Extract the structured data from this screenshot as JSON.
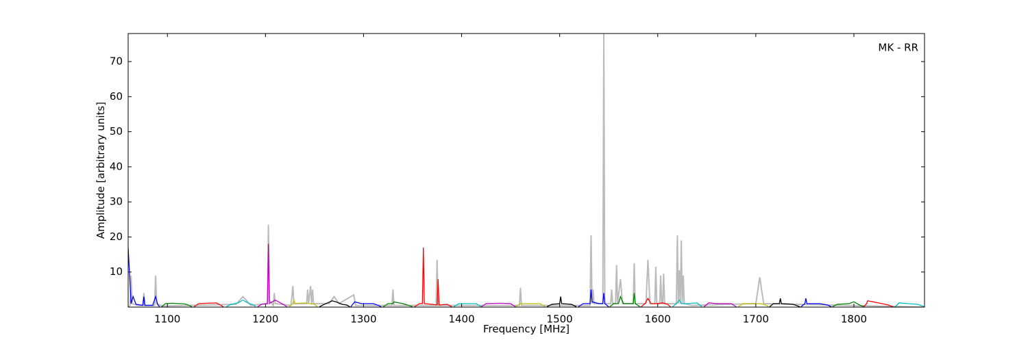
{
  "chart_data": {
    "type": "line",
    "annotation": "MK - RR",
    "xlabel": "Frequency [MHz]",
    "ylabel": "Amplitude [arbitrary units]",
    "xlim": [
      1060,
      1872
    ],
    "ylim": [
      0,
      78
    ],
    "xticks": [
      1100,
      1200,
      1300,
      1400,
      1500,
      1600,
      1700,
      1800
    ],
    "yticks": [
      10,
      20,
      30,
      40,
      50,
      60,
      70
    ],
    "series": [
      {
        "color": "#bbbbbb",
        "x": [
          1060,
          1062,
          1063,
          1064,
          1070,
          1075,
          1076,
          1077,
          1087,
          1088,
          1089,
          1095,
          1170,
          1177,
          1185,
          1202,
          1203,
          1204,
          1208,
          1209,
          1210,
          1226,
          1228,
          1229,
          1242,
          1243,
          1244,
          1246,
          1247,
          1248,
          1249,
          1265,
          1270,
          1275,
          1290,
          1292,
          1329,
          1330,
          1331,
          1374,
          1375,
          1376,
          1459,
          1460,
          1461,
          1531,
          1532,
          1533,
          1534,
          1535,
          1544,
          1545,
          1546,
          1552,
          1553,
          1554,
          1557,
          1558,
          1559,
          1562,
          1564,
          1575,
          1576,
          1577,
          1588,
          1590,
          1592,
          1597,
          1598,
          1599,
          1602,
          1603,
          1604,
          1605,
          1606,
          1607,
          1619,
          1620,
          1621,
          1622,
          1623,
          1624,
          1625,
          1626,
          1627,
          1635,
          1700,
          1704,
          1708,
          1872
        ],
        "values": [
          0,
          0.5,
          9,
          1,
          0.5,
          0.5,
          4,
          0.5,
          0.5,
          9,
          1,
          0.3,
          0.8,
          3,
          0.5,
          1,
          23.5,
          2,
          0.5,
          4,
          1,
          0.5,
          6,
          1,
          1,
          5,
          1,
          6,
          1,
          5,
          1,
          1,
          3,
          1,
          3.5,
          0.5,
          0.5,
          5,
          0.5,
          0.5,
          13.5,
          0.5,
          0.5,
          5.5,
          0.5,
          0.5,
          20.5,
          1,
          5,
          1,
          1,
          78,
          1,
          1,
          5,
          1,
          1,
          12,
          1,
          8,
          1,
          1,
          12.5,
          1,
          1,
          13.5,
          1,
          1,
          11.5,
          1,
          1,
          9,
          1,
          1,
          9.5,
          1,
          1,
          20.5,
          1,
          10.5,
          1,
          19,
          1,
          9,
          1,
          0.5,
          1,
          8.5,
          1,
          0
        ]
      },
      {
        "color": "#0000ff",
        "x": [
          1060,
          1063,
          1065,
          1068,
          1075,
          1076,
          1077,
          1085,
          1088,
          1090,
          1092
        ],
        "values": [
          17,
          1,
          3,
          0.8,
          0.5,
          3,
          0.5,
          0.5,
          3,
          0.8,
          0.1
        ]
      },
      {
        "color": "#008000",
        "x": [
          1094,
          1098,
          1105,
          1118,
          1122,
          1125
        ],
        "values": [
          0.1,
          1,
          1.1,
          0.9,
          0.5,
          0.1
        ]
      },
      {
        "color": "#ff0000",
        "x": [
          1127,
          1132,
          1140,
          1150,
          1154,
          1157
        ],
        "values": [
          0.1,
          1,
          1.1,
          1.2,
          0.6,
          0.1
        ]
      },
      {
        "color": "#00bfbf",
        "x": [
          1160,
          1165,
          1172,
          1177,
          1182,
          1188,
          1190
        ],
        "values": [
          0.1,
          0.8,
          1.2,
          2,
          1.2,
          0.6,
          0.1
        ]
      },
      {
        "color": "#bf00bf",
        "x": [
          1192,
          1196,
          1202,
          1203,
          1204,
          1205,
          1210,
          1218,
          1222
        ],
        "values": [
          0.1,
          0.8,
          1,
          18,
          1,
          1.2,
          2,
          0.8,
          0.1
        ]
      },
      {
        "color": "#bfbf00",
        "x": [
          1224,
          1228,
          1229,
          1230,
          1240,
          1250,
          1253
        ],
        "values": [
          0.1,
          1,
          2,
          1,
          1.2,
          0.8,
          0.1
        ]
      },
      {
        "color": "#000000",
        "x": [
          1255,
          1260,
          1268,
          1272,
          1278,
          1283,
          1286
        ],
        "values": [
          0.1,
          0.8,
          1.8,
          1.5,
          0.8,
          0.6,
          0.1
        ]
      },
      {
        "color": "#0000ff",
        "x": [
          1287,
          1291,
          1298,
          1310,
          1315,
          1318
        ],
        "values": [
          0.1,
          1.5,
          1,
          1,
          0.5,
          0.1
        ]
      },
      {
        "color": "#008000",
        "x": [
          1320,
          1325,
          1330,
          1331,
          1340,
          1346,
          1350
        ],
        "values": [
          0.1,
          1,
          1,
          1.5,
          1,
          0.5,
          0.1
        ]
      },
      {
        "color": "#ff0000",
        "x": [
          1352,
          1357,
          1360,
          1361,
          1362,
          1370,
          1375,
          1376,
          1377,
          1385,
          1390
        ],
        "values": [
          0.1,
          1,
          1,
          17,
          1,
          0.8,
          0.6,
          8,
          0.6,
          0.8,
          0.1
        ]
      },
      {
        "color": "#00bfbf",
        "x": [
          1392,
          1397,
          1405,
          1415,
          1420
        ],
        "values": [
          0.1,
          1,
          1,
          1,
          0.1
        ]
      },
      {
        "color": "#bf00bf",
        "x": [
          1420,
          1425,
          1440,
          1450,
          1455
        ],
        "values": [
          0.1,
          1,
          1.1,
          1,
          0.1
        ]
      },
      {
        "color": "#bfbf00",
        "x": [
          1455,
          1460,
          1470,
          1480,
          1485
        ],
        "values": [
          0.1,
          1,
          1,
          1,
          0.1
        ]
      },
      {
        "color": "#000000",
        "x": [
          1487,
          1492,
          1500,
          1501,
          1502,
          1512,
          1517
        ],
        "values": [
          0.1,
          0.8,
          1,
          3,
          1,
          0.8,
          0.1
        ]
      },
      {
        "color": "#0000ff",
        "x": [
          1519,
          1524,
          1531,
          1532,
          1533,
          1540,
          1544,
          1545,
          1546,
          1550
        ],
        "values": [
          0.1,
          1,
          1,
          5,
          1.5,
          1,
          1,
          4,
          1,
          0.1
        ]
      },
      {
        "color": "#008000",
        "x": [
          1551,
          1555,
          1560,
          1562,
          1565,
          1575,
          1576,
          1577,
          1582
        ],
        "values": [
          0.1,
          1,
          1,
          3,
          1,
          1,
          4,
          1,
          0.1
        ]
      },
      {
        "color": "#ff0000",
        "x": [
          1583,
          1587,
          1590,
          1593,
          1600,
          1605,
          1610,
          1613
        ],
        "values": [
          0.1,
          1,
          2.5,
          1,
          1,
          1.2,
          0.8,
          0.1
        ]
      },
      {
        "color": "#00bfbf",
        "x": [
          1615,
          1619,
          1622,
          1624,
          1630,
          1640,
          1645
        ],
        "values": [
          0.1,
          1,
          2,
          1,
          1,
          1.2,
          0.1
        ]
      },
      {
        "color": "#bf00bf",
        "x": [
          1647,
          1652,
          1660,
          1675,
          1680
        ],
        "values": [
          0.1,
          1.2,
          1,
          1,
          0.1
        ]
      },
      {
        "color": "#bfbf00",
        "x": [
          1682,
          1687,
          1695,
          1705,
          1710,
          1713
        ],
        "values": [
          0.1,
          1,
          1,
          1,
          0.6,
          0.1
        ]
      },
      {
        "color": "#000000",
        "x": [
          1714,
          1718,
          1724,
          1725,
          1726,
          1738,
          1745
        ],
        "values": [
          0.1,
          1,
          1,
          2.5,
          1,
          0.8,
          0.1
        ]
      },
      {
        "color": "#0000ff",
        "x": [
          1746,
          1750,
          1751,
          1752,
          1765,
          1773,
          1777
        ],
        "values": [
          0.1,
          1,
          2.5,
          1,
          1,
          0.6,
          0.1
        ]
      },
      {
        "color": "#008000",
        "x": [
          1778,
          1783,
          1795,
          1800,
          1806,
          1810
        ],
        "values": [
          0.1,
          0.8,
          1,
          1.5,
          0.6,
          0.1
        ]
      },
      {
        "color": "#ff0000",
        "x": [
          1810,
          1813,
          1814,
          1825,
          1835,
          1840
        ],
        "values": [
          0.1,
          1,
          1.8,
          1.2,
          0.6,
          0.1
        ]
      },
      {
        "color": "#00bfbf",
        "x": [
          1842,
          1846,
          1855,
          1865,
          1872
        ],
        "values": [
          0.1,
          1.2,
          1,
          0.8,
          0.1
        ]
      }
    ]
  }
}
